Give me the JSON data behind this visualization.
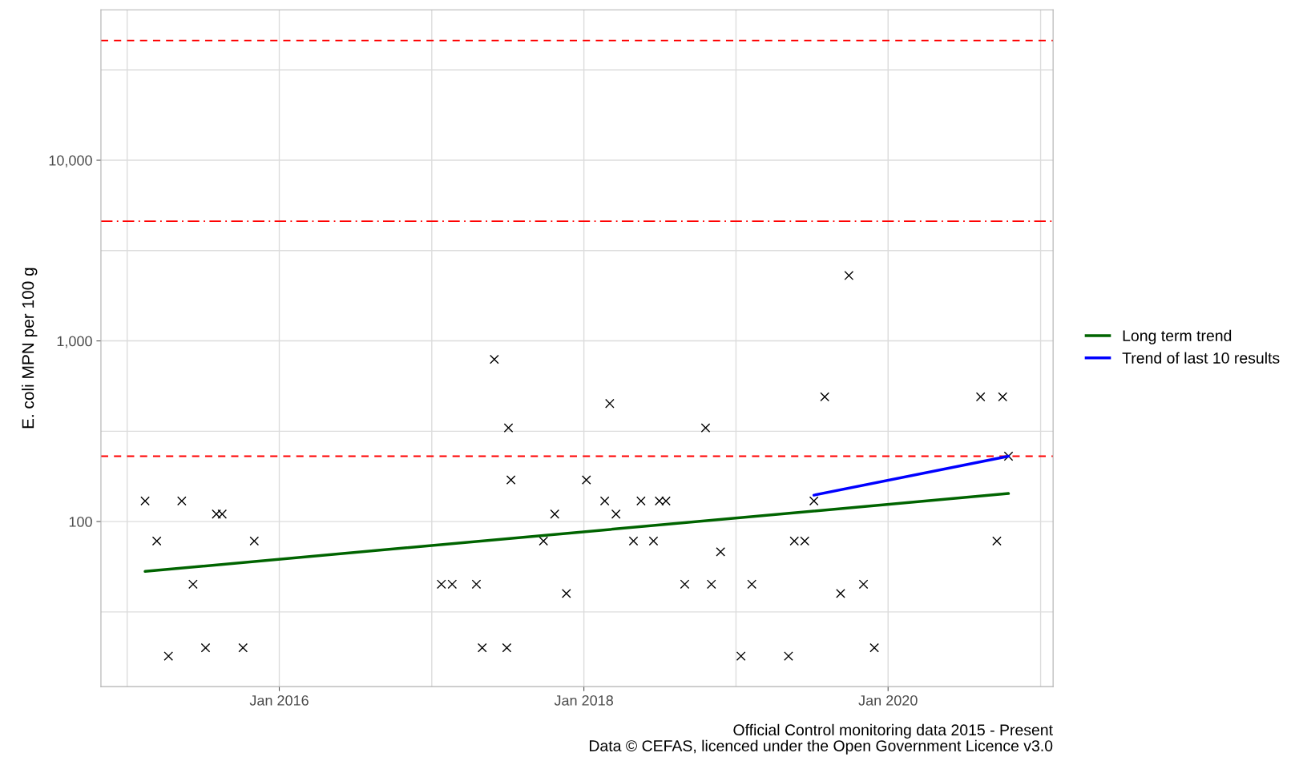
{
  "chart_data": {
    "type": "scatter",
    "ylabel": "E. coli MPN per 100 g",
    "log": "y",
    "xlim": [
      "2014-10-30",
      "2021-01-31"
    ],
    "ylim": [
      12.2,
      68000
    ],
    "xticks": [
      {
        "value": "2015-01-01",
        "label": null
      },
      {
        "value": "2016-01-01",
        "label": "Jan 2016"
      },
      {
        "value": "2017-01-01",
        "label": null
      },
      {
        "value": "2018-01-01",
        "label": "Jan 2018"
      },
      {
        "value": "2019-01-01",
        "label": null
      },
      {
        "value": "2020-01-01",
        "label": "Jan 2020"
      },
      {
        "value": "2021-01-01",
        "label": null
      }
    ],
    "yticks": [
      {
        "value": 31.6,
        "label": null
      },
      {
        "value": 100,
        "label": "100"
      },
      {
        "value": 316,
        "label": null
      },
      {
        "value": 1000,
        "label": "1,000"
      },
      {
        "value": 3162,
        "label": null
      },
      {
        "value": 10000,
        "label": "10,000"
      },
      {
        "value": 31623,
        "label": null
      }
    ],
    "grid": true,
    "legend": "right",
    "series": [
      {
        "color": "#000000",
        "marker": "cross",
        "x": [
          "2015-02-13",
          "2015-03-13",
          "2015-04-10",
          "2015-05-12",
          "2015-06-08",
          "2015-07-08",
          "2015-08-03",
          "2015-08-17",
          "2015-10-06",
          "2015-11-02",
          "2017-01-24",
          "2017-02-19",
          "2017-04-18",
          "2017-05-02",
          "2017-05-31",
          "2017-06-30",
          "2017-07-04",
          "2017-07-10",
          "2017-09-26",
          "2017-10-23",
          "2017-11-20",
          "2018-01-07",
          "2018-02-20",
          "2018-03-04",
          "2018-03-19",
          "2018-04-30",
          "2018-05-18",
          "2018-06-17",
          "2018-07-01",
          "2018-07-17",
          "2018-08-31",
          "2018-10-20",
          "2018-11-03",
          "2018-11-25",
          "2019-01-13",
          "2019-02-08",
          "2019-05-07",
          "2019-05-21",
          "2019-06-15",
          "2019-07-07",
          "2019-08-02",
          "2019-09-09",
          "2019-09-29",
          "2019-11-03",
          "2019-11-29",
          "2020-08-10",
          "2020-09-18",
          "2020-10-02",
          "2020-10-16"
        ],
        "values": [
          130,
          78,
          18,
          130,
          45,
          20,
          110,
          110,
          20,
          78,
          45,
          45,
          45,
          20,
          790,
          20,
          330,
          170,
          78,
          110,
          40,
          170,
          130,
          450,
          110,
          78,
          130,
          78,
          130,
          130,
          45,
          330,
          45,
          68,
          18,
          45,
          18,
          78,
          78,
          130,
          490,
          40,
          2300,
          45,
          20,
          490,
          78,
          490,
          230
        ]
      },
      {
        "type": "line",
        "name": "Long term trend",
        "color": "#006400",
        "x": [
          "2015-02-13",
          "2020-10-16"
        ],
        "values": [
          53,
          143
        ]
      },
      {
        "type": "line",
        "name": "Trend of last 10 results",
        "color": "#0000ff",
        "x": [
          "2019-07-07",
          "2020-10-16"
        ],
        "values": [
          140,
          230
        ]
      }
    ],
    "ref_lines": [
      {
        "axis": "y",
        "value": 230,
        "color": "#ff0000",
        "line_style": "dashed"
      },
      {
        "axis": "y",
        "value": 4600,
        "color": "#ff0000",
        "line_style": "dashdot"
      },
      {
        "axis": "y",
        "value": 46000,
        "color": "#ff0000",
        "line_style": "dashed"
      }
    ],
    "annotations": [
      "Official Control monitoring data 2015 - Present",
      "Data © CEFAS, licenced under the Open Government Licence v3.0"
    ]
  }
}
